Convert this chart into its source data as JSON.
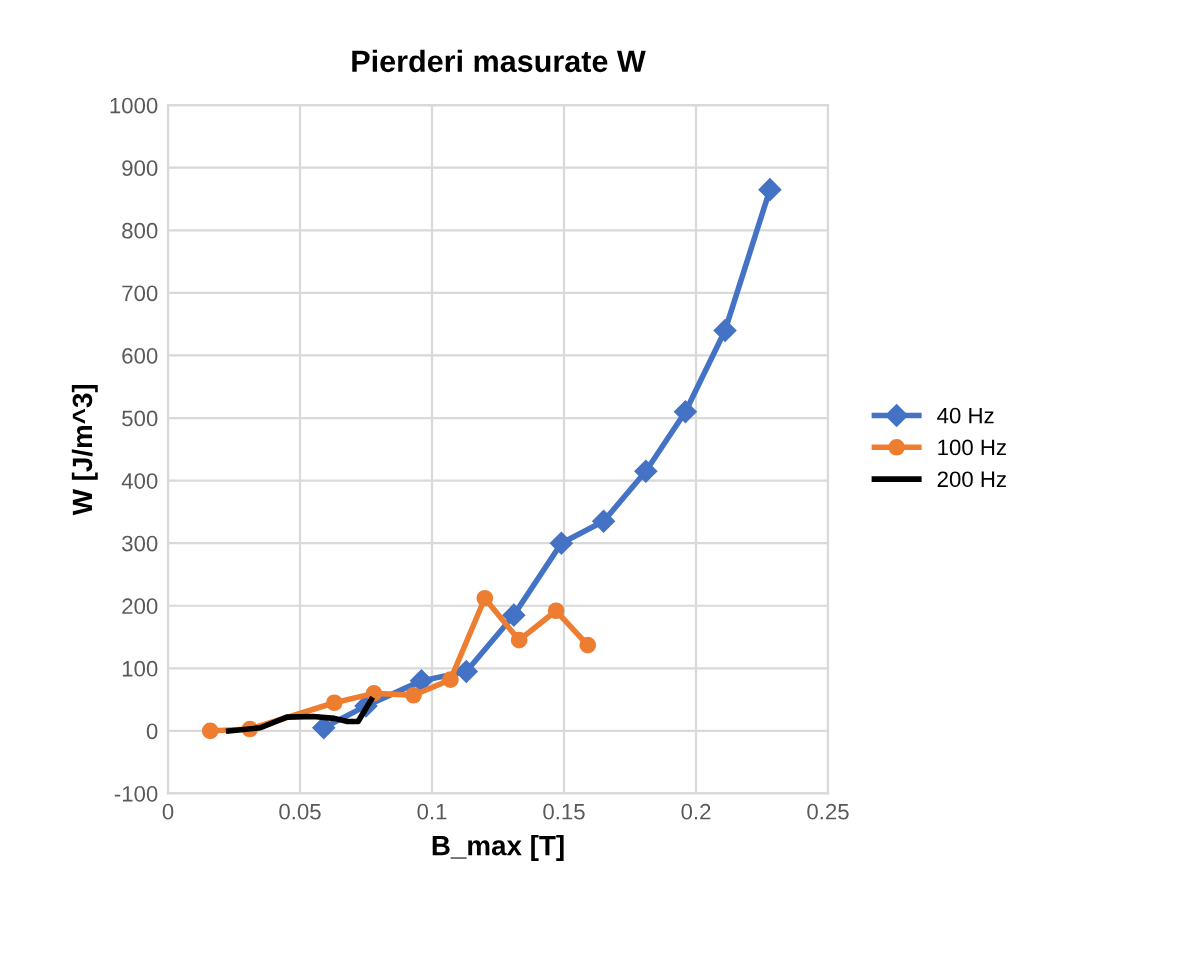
{
  "chart_data": {
    "type": "line",
    "title": "Pierderi masurate W",
    "xlabel": "B_max [T]",
    "ylabel": "W [J/m^3]",
    "xlim": [
      0,
      0.25
    ],
    "xticks": [
      0,
      0.05,
      0.1,
      0.15,
      0.2,
      0.25
    ],
    "ylim": [
      -100,
      1000
    ],
    "yticks": [
      -100,
      0,
      100,
      200,
      300,
      400,
      500,
      600,
      700,
      800,
      900,
      1000
    ],
    "grid": true,
    "legend": "right",
    "series": [
      {
        "name": "40 Hz",
        "color": "#4472c4",
        "marker": "diamond",
        "x": [
          0.059,
          0.075,
          0.096,
          0.113,
          0.131,
          0.149,
          0.165,
          0.181,
          0.196,
          0.211,
          0.228
        ],
        "values": [
          5,
          40,
          80,
          95,
          185,
          300,
          335,
          415,
          510,
          640,
          865
        ]
      },
      {
        "name": "100 Hz",
        "color": "#ed7d31",
        "marker": "circle",
        "x": [
          0.016,
          0.031,
          0.063,
          0.078,
          0.093,
          0.107,
          0.12,
          0.133,
          0.147,
          0.159
        ],
        "values": [
          0,
          3,
          45,
          60,
          57,
          82,
          212,
          145,
          192,
          137
        ]
      },
      {
        "name": "200 Hz",
        "color": "#000000",
        "marker": "none",
        "x": [
          0.023,
          0.035,
          0.045,
          0.055,
          0.063,
          0.068,
          0.072,
          0.077
        ],
        "values": [
          0,
          5,
          22,
          23,
          20,
          15,
          15,
          50
        ]
      }
    ]
  }
}
